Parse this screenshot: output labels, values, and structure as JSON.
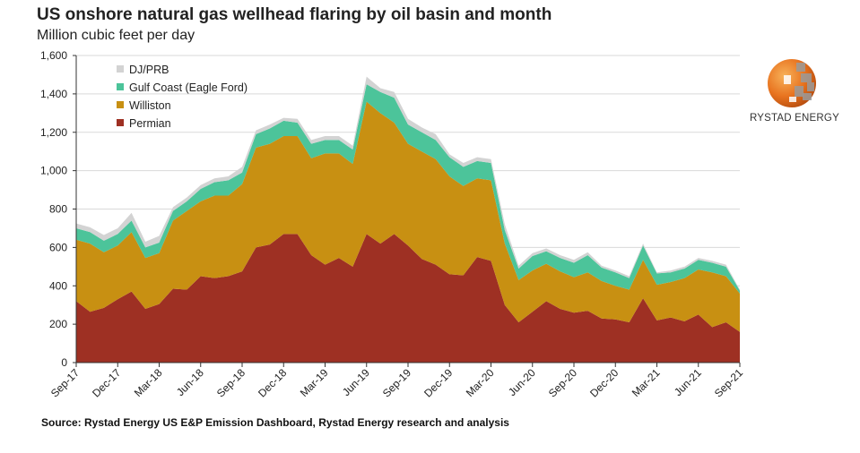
{
  "chart_data": {
    "type": "area",
    "stacked": true,
    "title": "US onshore natural gas wellhead flaring by oil basin and month",
    "subtitle": "Million cubic feet per day",
    "xlabel": "",
    "ylabel": "Million cubic feet per day",
    "ylim": [
      0,
      1600
    ],
    "yticks": [
      0,
      200,
      400,
      600,
      800,
      1000,
      1200,
      1400,
      1600
    ],
    "ytick_labels": [
      "0",
      "200",
      "400",
      "600",
      "800",
      "1,000",
      "1,200",
      "1,400",
      "1,600"
    ],
    "x": [
      "Sep-17",
      "Oct-17",
      "Nov-17",
      "Dec-17",
      "Jan-18",
      "Feb-18",
      "Mar-18",
      "Apr-18",
      "May-18",
      "Jun-18",
      "Jul-18",
      "Aug-18",
      "Sep-18",
      "Oct-18",
      "Nov-18",
      "Dec-18",
      "Jan-19",
      "Feb-19",
      "Mar-19",
      "Apr-19",
      "May-19",
      "Jun-19",
      "Jul-19",
      "Aug-19",
      "Sep-19",
      "Oct-19",
      "Nov-19",
      "Dec-19",
      "Jan-20",
      "Feb-20",
      "Mar-20",
      "Apr-20",
      "May-20",
      "Jun-20",
      "Jul-20",
      "Aug-20",
      "Sep-20",
      "Oct-20",
      "Nov-20",
      "Dec-20",
      "Jan-21",
      "Feb-21",
      "Mar-21",
      "Apr-21",
      "May-21",
      "Jun-21",
      "Jul-21",
      "Aug-21",
      "Sep-21"
    ],
    "xtick_labels": [
      "Sep-17",
      "Dec-17",
      "Mar-18",
      "Jun-18",
      "Sep-18",
      "Dec-18",
      "Mar-19",
      "Jun-19",
      "Sep-19",
      "Dec-19",
      "Mar-20",
      "Jun-20",
      "Sep-20",
      "Dec-20",
      "Mar-21",
      "Jun-21",
      "Sep-21"
    ],
    "grid": true,
    "legend_position": "top-left",
    "series": [
      {
        "name": "Permian",
        "color": "#9e3023",
        "values": [
          320,
          265,
          285,
          330,
          370,
          280,
          305,
          385,
          380,
          450,
          440,
          450,
          475,
          600,
          615,
          670,
          670,
          560,
          510,
          545,
          500,
          670,
          620,
          670,
          610,
          540,
          510,
          460,
          455,
          550,
          530,
          300,
          210,
          265,
          320,
          280,
          260,
          270,
          230,
          225,
          210,
          335,
          220,
          235,
          215,
          250,
          185,
          210,
          160
        ]
      },
      {
        "name": "Williston",
        "color": "#c89012",
        "values": [
          320,
          355,
          290,
          280,
          310,
          265,
          265,
          355,
          410,
          390,
          430,
          420,
          455,
          520,
          525,
          510,
          510,
          505,
          580,
          545,
          535,
          690,
          680,
          580,
          530,
          560,
          550,
          510,
          465,
          410,
          420,
          320,
          220,
          215,
          195,
          195,
          185,
          200,
          195,
          175,
          170,
          200,
          185,
          185,
          225,
          235,
          285,
          240,
          200
        ]
      },
      {
        "name": "Gulf Coast (Eagle Ford)",
        "color": "#4cc49a",
        "values": [
          60,
          60,
          60,
          60,
          60,
          55,
          55,
          50,
          50,
          65,
          70,
          80,
          60,
          70,
          80,
          80,
          70,
          75,
          70,
          70,
          75,
          90,
          110,
          130,
          100,
          100,
          100,
          100,
          100,
          90,
          90,
          70,
          60,
          75,
          65,
          70,
          75,
          90,
          70,
          70,
          60,
          75,
          60,
          50,
          50,
          50,
          50,
          50,
          15
        ]
      },
      {
        "name": "DJ/PRB",
        "color": "#d3d3d3",
        "values": [
          25,
          25,
          30,
          30,
          40,
          30,
          35,
          20,
          20,
          20,
          20,
          20,
          30,
          20,
          20,
          15,
          20,
          20,
          20,
          20,
          20,
          40,
          20,
          30,
          30,
          25,
          30,
          15,
          20,
          20,
          20,
          30,
          15,
          15,
          15,
          15,
          15,
          15,
          10,
          10,
          10,
          10,
          5,
          10,
          10,
          10,
          10,
          10,
          5
        ]
      }
    ],
    "legend_order": [
      "DJ/PRB",
      "Gulf Coast (Eagle Ford)",
      "Williston",
      "Permian"
    ]
  },
  "source": "Source: Rystad Energy US E&P Emission  Dashboard, Rystad Energy research and analysis",
  "logo": {
    "text": "RYSTAD ENERGY"
  }
}
